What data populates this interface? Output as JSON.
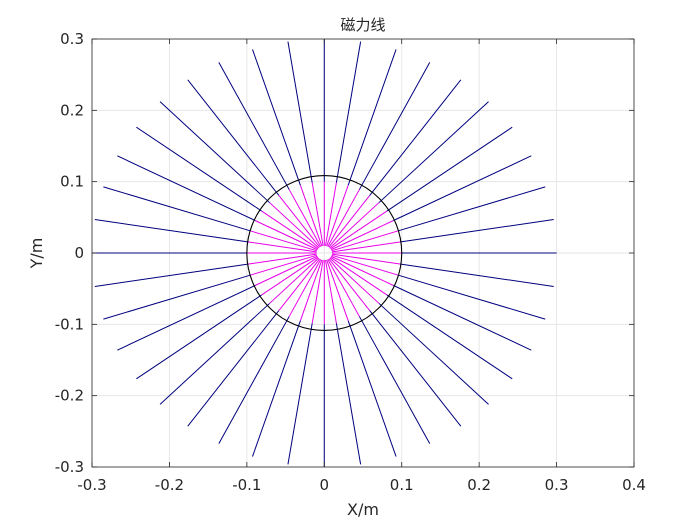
{
  "chart_data": {
    "type": "line",
    "title": "磁力线",
    "xlabel": "X/m",
    "ylabel": "Y/m",
    "xlim": [
      -0.3,
      0.4
    ],
    "ylim": [
      -0.3,
      0.3
    ],
    "xticks": [
      -0.3,
      -0.2,
      -0.1,
      0,
      0.1,
      0.2,
      0.3,
      0.4
    ],
    "xtick_labels": [
      "-0.3",
      "-0.2",
      "-0.1",
      "0",
      "0.1",
      "0.2",
      "0.3",
      "0.4"
    ],
    "yticks": [
      -0.3,
      -0.2,
      -0.1,
      0,
      0.1,
      0.2,
      0.3
    ],
    "ytick_labels": [
      "-0.3",
      "-0.2",
      "-0.1",
      "0",
      "0.1",
      "0.2",
      "0.3"
    ],
    "grid": true,
    "legend": "none",
    "colors": {
      "outer_field_lines": "#00007f",
      "inner_field_lines": "#e800e8",
      "boundary_circle": "#000000",
      "grid": "#e6e6e6",
      "axes": "#262626"
    },
    "series": [
      {
        "role": "boundary-circle",
        "center": [
          0,
          0
        ],
        "radius": 0.1
      },
      {
        "role": "inner-field-lines",
        "line_count": 40,
        "r_start": 0.01,
        "r_end": 0.1
      },
      {
        "role": "outer-field-lines",
        "line_count": 40,
        "r_start": 0.1,
        "r_end": 0.3
      }
    ]
  }
}
